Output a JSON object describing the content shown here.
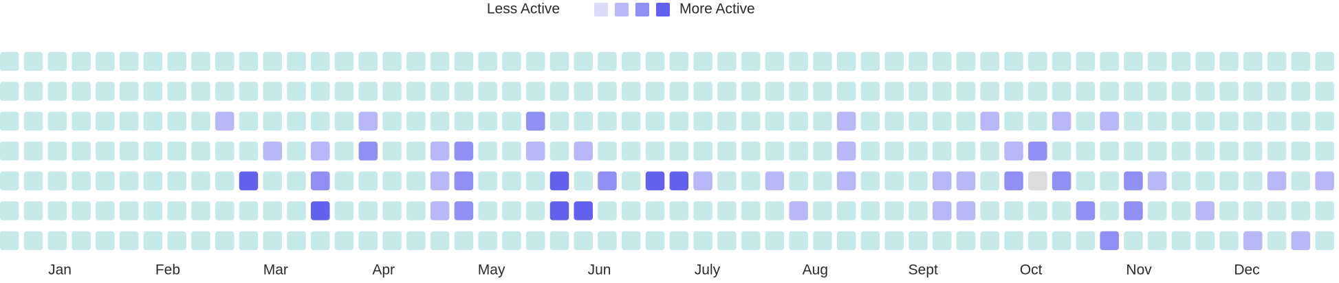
{
  "chart_data": {
    "type": "heatmap",
    "legend": {
      "low_label": "Less Active",
      "high_label": "More Active",
      "levels": [
        1,
        2,
        3,
        4
      ]
    },
    "colors": [
      "#c6e9ea",
      "#dcdcfa",
      "#b8b8f8",
      "#9090f4",
      "#6262ee"
    ],
    "missing_color": "#dcdcdc",
    "months": [
      "Jan",
      "Feb",
      "Mar",
      "Apr",
      "May",
      "Jun",
      "July",
      "Aug",
      "Sept",
      "Oct",
      "Nov",
      "Dec"
    ],
    "values": [
      [
        0,
        0,
        0,
        0,
        0,
        0,
        0,
        0,
        0,
        0,
        0,
        0,
        0,
        0,
        0,
        0,
        0,
        0,
        0,
        0,
        0,
        0,
        0,
        0,
        0,
        0,
        0,
        0,
        0,
        0,
        0,
        0,
        0,
        0,
        0,
        0,
        0,
        0,
        0,
        0,
        0,
        0,
        0,
        0,
        0,
        0,
        0,
        0,
        0,
        0,
        0,
        0,
        0,
        0,
        0,
        0
      ],
      [
        0,
        0,
        0,
        0,
        0,
        0,
        0,
        0,
        0,
        0,
        0,
        0,
        0,
        0,
        0,
        0,
        0,
        0,
        0,
        0,
        0,
        0,
        0,
        0,
        0,
        0,
        0,
        0,
        0,
        0,
        0,
        0,
        0,
        0,
        0,
        0,
        0,
        0,
        0,
        0,
        0,
        0,
        0,
        0,
        0,
        0,
        0,
        0,
        0,
        0,
        0,
        0,
        0,
        0,
        0,
        0
      ],
      [
        0,
        0,
        0,
        0,
        0,
        0,
        0,
        0,
        0,
        2,
        0,
        0,
        0,
        0,
        0,
        2,
        0,
        0,
        0,
        0,
        0,
        0,
        3,
        0,
        0,
        0,
        0,
        0,
        0,
        0,
        0,
        0,
        0,
        0,
        0,
        2,
        0,
        0,
        0,
        0,
        0,
        2,
        0,
        0,
        2,
        0,
        2,
        0,
        0,
        0,
        0,
        0,
        0,
        0,
        0,
        0
      ],
      [
        0,
        0,
        0,
        0,
        0,
        0,
        0,
        0,
        0,
        0,
        0,
        2,
        0,
        2,
        0,
        3,
        0,
        0,
        2,
        3,
        0,
        0,
        2,
        0,
        2,
        0,
        0,
        0,
        0,
        0,
        0,
        0,
        0,
        0,
        0,
        2,
        0,
        0,
        0,
        0,
        0,
        0,
        2,
        3,
        0,
        0,
        0,
        0,
        0,
        0,
        0,
        0,
        0,
        0,
        0,
        0
      ],
      [
        0,
        0,
        0,
        0,
        0,
        0,
        0,
        0,
        0,
        0,
        4,
        0,
        0,
        3,
        0,
        0,
        0,
        0,
        2,
        3,
        0,
        0,
        0,
        4,
        0,
        3,
        0,
        4,
        4,
        2,
        0,
        0,
        2,
        0,
        0,
        2,
        0,
        0,
        0,
        2,
        2,
        0,
        3,
        null,
        3,
        0,
        0,
        3,
        2,
        0,
        0,
        0,
        0,
        2,
        0,
        2
      ],
      [
        0,
        0,
        0,
        0,
        0,
        0,
        0,
        0,
        0,
        0,
        0,
        0,
        0,
        4,
        0,
        0,
        0,
        0,
        2,
        3,
        0,
        0,
        0,
        4,
        4,
        0,
        0,
        0,
        0,
        0,
        0,
        0,
        0,
        2,
        0,
        0,
        0,
        0,
        0,
        2,
        2,
        0,
        0,
        0,
        0,
        3,
        0,
        3,
        0,
        0,
        2,
        0,
        0,
        0,
        0,
        0
      ],
      [
        0,
        0,
        0,
        0,
        0,
        0,
        0,
        0,
        0,
        0,
        0,
        0,
        0,
        0,
        0,
        0,
        0,
        0,
        0,
        0,
        0,
        0,
        0,
        0,
        0,
        0,
        0,
        0,
        0,
        0,
        0,
        0,
        0,
        0,
        0,
        0,
        0,
        0,
        0,
        0,
        0,
        0,
        0,
        0,
        0,
        0,
        3,
        0,
        0,
        0,
        0,
        0,
        2,
        0,
        2,
        0
      ]
    ]
  }
}
